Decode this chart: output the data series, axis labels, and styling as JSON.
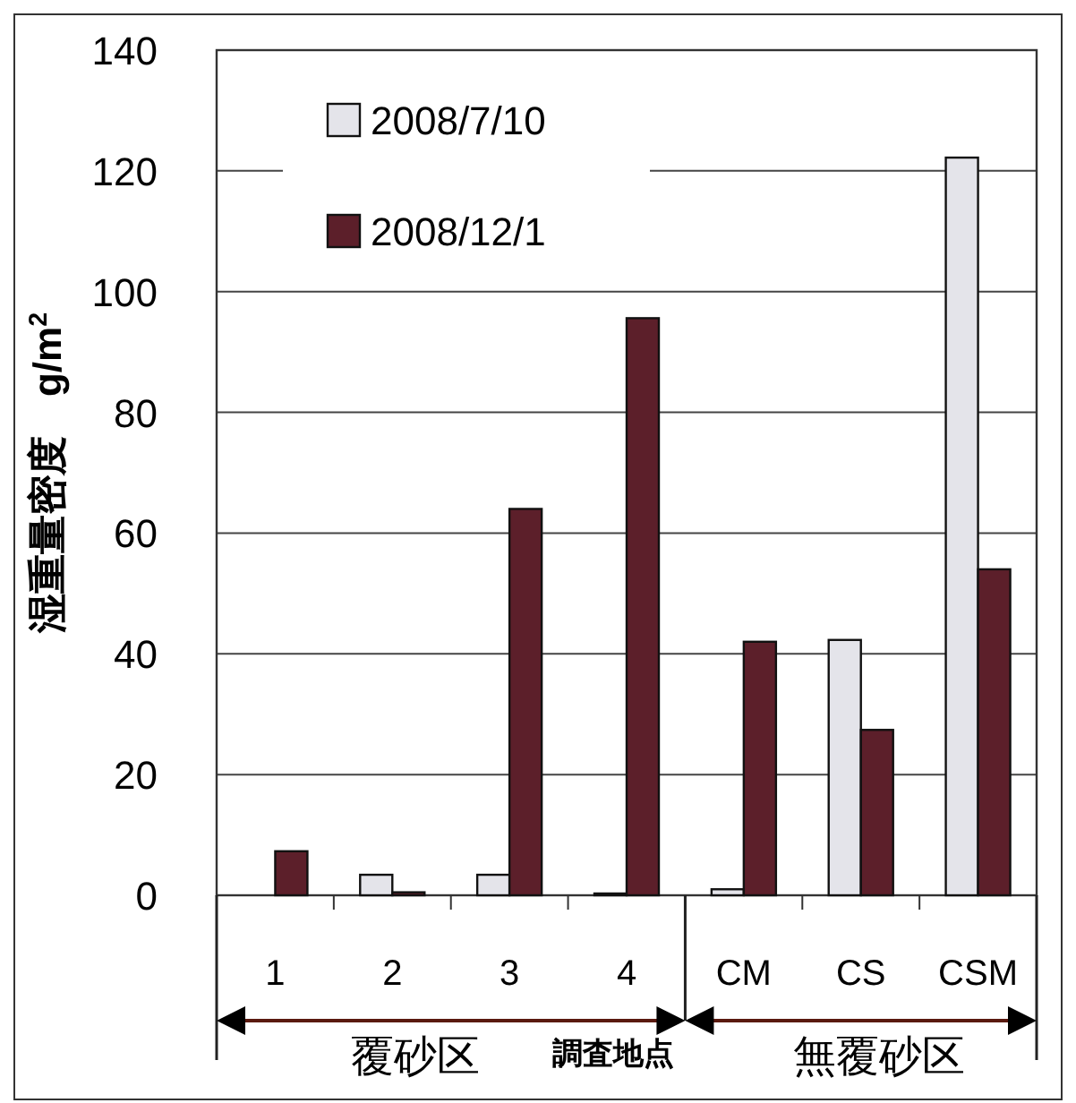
{
  "chart_data": {
    "type": "bar",
    "ylabel": "湿重量密度　g/m$^{2}$",
    "xlabel": "調査地点",
    "categories": [
      "1",
      "2",
      "3",
      "4",
      "CM",
      "CS",
      "CSM"
    ],
    "series": [
      {
        "name": "2008/7/10",
        "color": "#e4e4ea",
        "values": [
          0,
          3.4,
          3.4,
          0.3,
          1,
          42.3,
          122.2
        ]
      },
      {
        "name": "2008/12/1",
        "color": "#5c1f2a",
        "values": [
          7.3,
          0.5,
          64,
          95.6,
          42,
          27.4,
          54
        ]
      }
    ],
    "ylim": [
      0,
      140
    ],
    "yticks": [
      0,
      20,
      40,
      60,
      80,
      100,
      120,
      140
    ],
    "grid": "y",
    "legend": "top left",
    "annotations": [
      "覆砂区",
      "無覆砂区"
    ]
  }
}
